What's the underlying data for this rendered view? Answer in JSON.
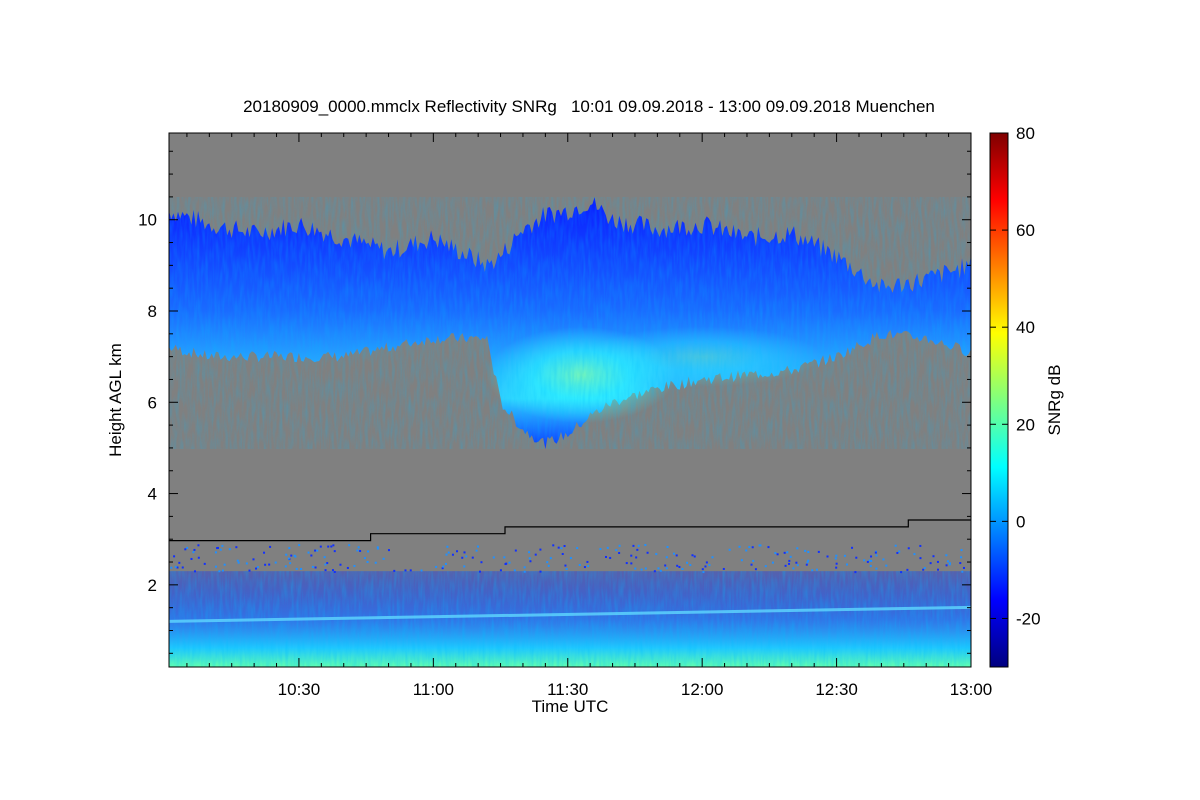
{
  "chart_data": {
    "type": "heatmap",
    "title": "20180909_0000.mmclx Reflectivity SNRg   10:01 09.09.2018 - 13:00 09.09.2018 Muenchen",
    "xlabel": "Time UTC",
    "ylabel": "Height AGL km",
    "colorbar_label": "SNRg dB",
    "x_ticks": [
      "10:30",
      "11:00",
      "11:30",
      "12:00",
      "12:30",
      "13:00"
    ],
    "x_tick_minutes": [
      630,
      660,
      690,
      720,
      750,
      780
    ],
    "xlim_minutes": [
      601,
      780
    ],
    "y_ticks": [
      2,
      4,
      6,
      8,
      10
    ],
    "ylim": [
      0.2,
      11.9
    ],
    "colorbar_ticks": [
      -20,
      0,
      20,
      40,
      60,
      80
    ],
    "colorbar_range": [
      -30,
      80
    ],
    "background_color": "#808080",
    "colormap": [
      "#00007f",
      "#0000ff",
      "#007fff",
      "#00ffff",
      "#7fff7f",
      "#ffff00",
      "#ff7f00",
      "#ff0000",
      "#7f0000"
    ],
    "cloud_layer": {
      "time_minutes": [
        601,
        610,
        620,
        630,
        640,
        650,
        660,
        672,
        675,
        680,
        685,
        690,
        695,
        700,
        710,
        720,
        730,
        740,
        750,
        760,
        770,
        780
      ],
      "top_km": [
        10.2,
        9.9,
        9.7,
        9.9,
        9.6,
        9.3,
        9.6,
        9.0,
        9.2,
        9.8,
        10.1,
        10.2,
        10.4,
        10.0,
        9.8,
        9.9,
        9.6,
        9.7,
        9.2,
        8.5,
        8.7,
        9.0
      ],
      "base_km": [
        7.2,
        7.0,
        7.0,
        7.0,
        7.0,
        7.2,
        7.4,
        7.4,
        6.0,
        5.4,
        5.1,
        5.3,
        5.7,
        6.0,
        6.3,
        6.5,
        6.6,
        6.7,
        7.0,
        7.5,
        7.4,
        7.1
      ]
    },
    "threshold_line": {
      "time_minutes": [
        601,
        646,
        646,
        676,
        676,
        766,
        766,
        780
      ],
      "height_km": [
        2.97,
        2.97,
        3.12,
        3.12,
        3.27,
        3.27,
        3.42,
        3.42
      ]
    },
    "boundary_layer": {
      "top_km": 2.3,
      "band_km": 1.2
    }
  }
}
